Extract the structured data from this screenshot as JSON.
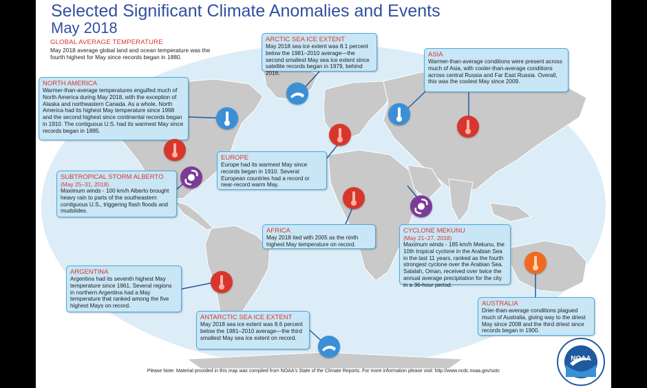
{
  "title": "Selected Significant Climate Anomalies and Events",
  "subtitle": "May 2018",
  "global": {
    "heading": "GLOBAL AVERAGE TEMPERATURE",
    "text": "May 2018 average global land and ocean temperature was the fourth highest for May since records began in 1880."
  },
  "boxes": {
    "north_america": {
      "heading": "NORTH AMERICA",
      "text": "Warmer-than-average temperatures engulfed much of North America during May 2018, with the exception of Alaska and northeastern Canada. As a whole, North America had its highest May temperature since 1998 and the second highest since continental records began in 1910. The contiguous U.S. had its warmest May since records began in 1895."
    },
    "arctic": {
      "heading": "ARCTIC SEA ICE EXTENT",
      "text": "May 2018 sea ice extent was 8.1 percent below the 1981–2010 average—the second smallest May sea ice extent since satellite records began in 1979, behind 2016."
    },
    "asia": {
      "heading": "ASIA",
      "text": "Warmer-than-average conditions were present across much of Asia, with cooler-than-average conditions across central Russia and Far East Russia. Overall, this was the coolest May since 2009."
    },
    "europe": {
      "heading": "EUROPE",
      "text": "Europe had its warmest May since records began in 1910. Several European countries had a record or near-record warm May."
    },
    "alberto": {
      "heading": "SUBTROPICAL STORM ALBERTO",
      "dates": "(May 25–31, 2018)",
      "text": "Maximum winds - 100 km/h Alberto brought heavy rain to parts of the southeastern contiguous U.S., triggering flash floods and mudslides."
    },
    "africa": {
      "heading": "AFRICA",
      "text": "May 2018 tied with 2005 as the ninth highest May temperature on record."
    },
    "mekunu": {
      "heading": "CYCLONE MEKUNU",
      "dates": "(May 21–27, 2018)",
      "text": "Maximum winds - 185 km/h Mekunu, the 10th tropical cyclone in the Arabian Sea in the last 11 years, ranked as the fourth strongest cyclone over the Arabian Sea. Salalah, Oman, received over twice the annual average precipitation for the city in a 36-hour period."
    },
    "argentina": {
      "heading": "ARGENTINA",
      "text": "Argentina had its seventh highest May temperature since 1961. Several regions in northern Argentina had a May temperature that ranked among the five highest Mays on record."
    },
    "antarctic": {
      "heading": "ANTARCTIC SEA ICE EXTENT",
      "text": "May 2018 sea ice extent was 8.6 percent below the 1981–2010 average—the third smallest May sea ice extent on record."
    },
    "australia": {
      "heading": "AUSTRALIA",
      "text": "Drier-than-average conditions plagued much of Australia, giving way to the driest May since 2008 and the third driest since records began in 1900."
    }
  },
  "footer": "Please Note: Material provided in this map was compiled from NOAA's State of the Climate Reports. For more information please visit: http://www.ncdc.noaa.gov/sotc",
  "logo": {
    "text": "NOAA",
    "ring_text": "NATIONAL OCEANIC AND ATMOSPHERIC ADMINISTRATION · U.S. DEPARTMENT OF COMMERCE"
  },
  "colors": {
    "ocean": "#dcedf8",
    "land": "#c9c9c9",
    "box_fill": "#c8e6f6",
    "box_border": "#4aa8dd",
    "heading_red": "#d8362c",
    "title_blue": "#2f4f9f",
    "warm_icon": "#d8362c",
    "cold_icon": "#3a8fd6",
    "storm_icon": "#7b3c97",
    "dry_icon": "#ef6b1f"
  },
  "icons": [
    "warm-thermometer-icon",
    "cold-thermometer-icon",
    "sea-ice-icon",
    "tropical-cyclone-icon",
    "dry-thermometer-icon"
  ]
}
